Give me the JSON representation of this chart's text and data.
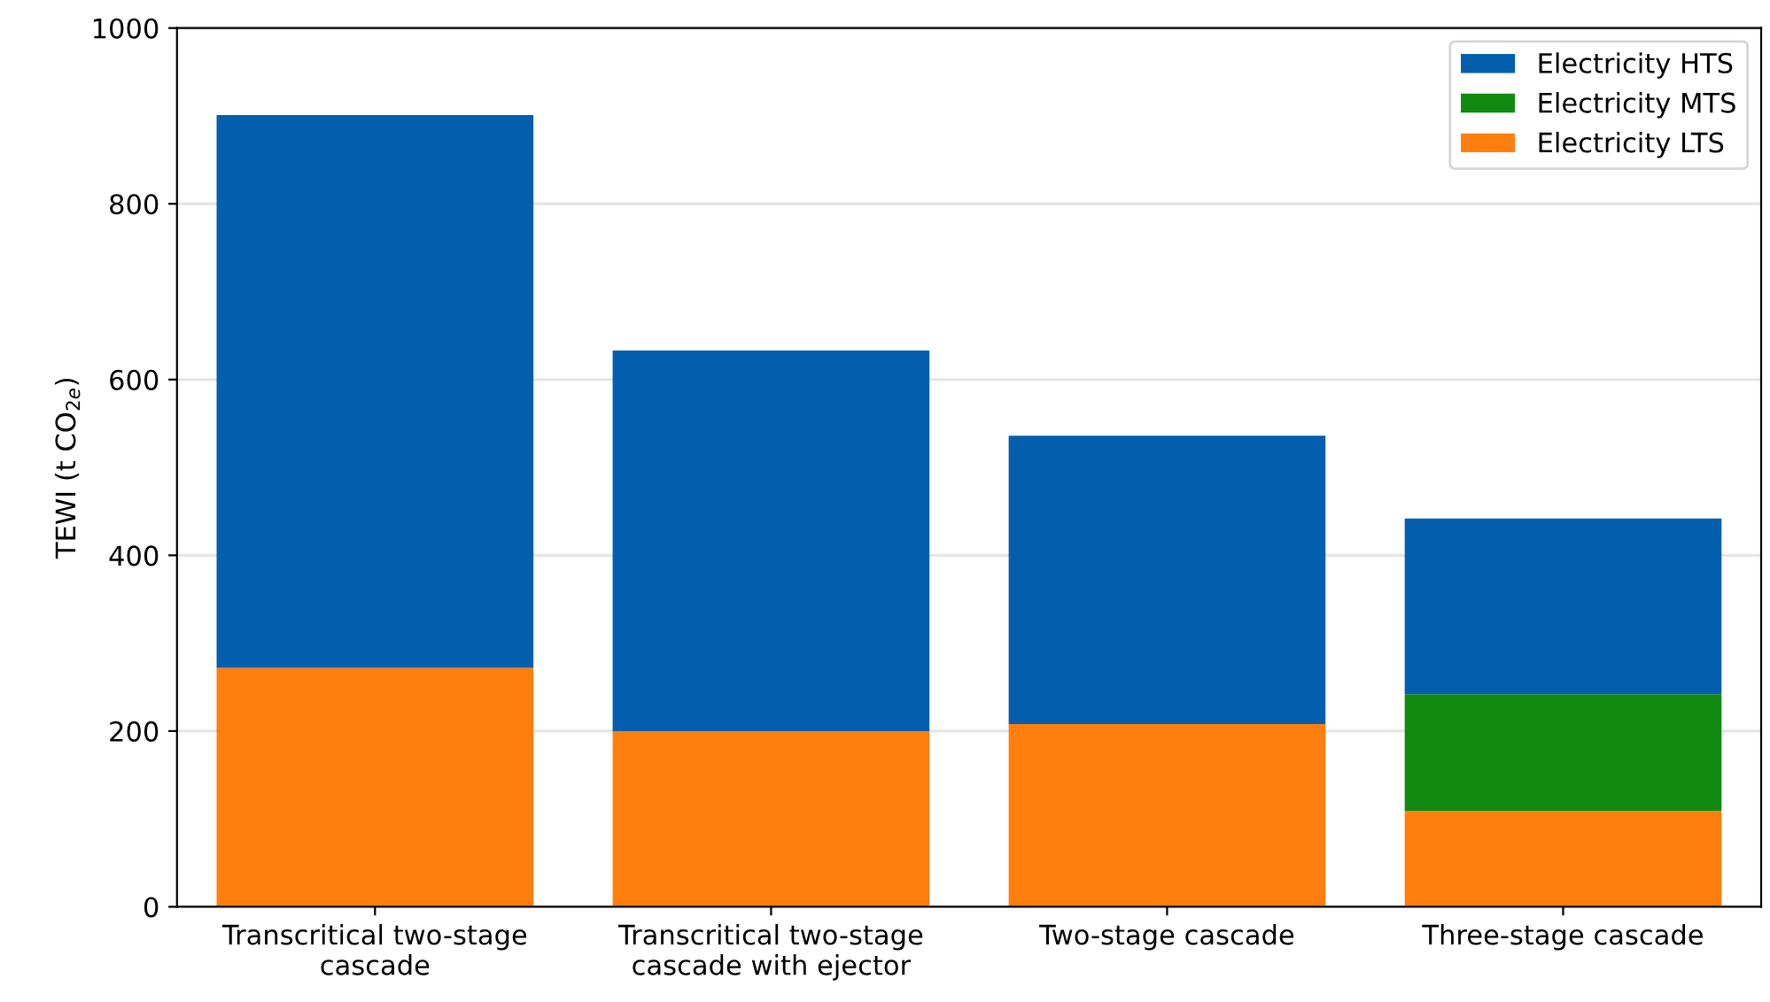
{
  "chart_data": {
    "type": "bar",
    "stacked": true,
    "ylabel": "TEWI (t CO$_{2e}$)",
    "categories": [
      "Transcritical two-stage\ncascade",
      "Transcritical two-stage\ncascade with ejector",
      "Two-stage cascade",
      "Three-stage cascade"
    ],
    "series": [
      {
        "name": "Electricity LTS",
        "color": "#ff7f0e",
        "values": [
          272,
          200,
          208,
          109
        ]
      },
      {
        "name": "Electricity MTS",
        "color": "#118a11",
        "values": [
          null,
          null,
          null,
          133
        ]
      },
      {
        "name": "Electricity HTS",
        "color": "#035fad",
        "values": [
          629,
          433,
          328,
          200
        ]
      }
    ],
    "ylim": [
      0,
      1000
    ],
    "yticks": [
      0,
      200,
      400,
      600,
      800,
      1000
    ],
    "grid": "y",
    "legend": "top right"
  }
}
